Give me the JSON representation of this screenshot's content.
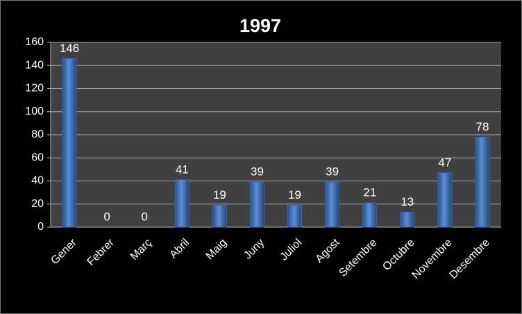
{
  "chart_data": {
    "type": "bar",
    "title": "1997",
    "categories": [
      "Gener",
      "Febrer",
      "Març",
      "Abril",
      "Maig",
      "Juny",
      "Juliol",
      "Agost",
      "Setembre",
      "Octubre",
      "Novembre",
      "Desembre"
    ],
    "values": [
      146,
      0,
      0,
      41,
      19,
      39,
      19,
      39,
      21,
      13,
      47,
      78
    ],
    "color": "#4f81bd",
    "ylim": [
      0,
      160
    ],
    "yticks": [
      0,
      20,
      40,
      60,
      80,
      100,
      120,
      140,
      160
    ],
    "grid": true
  }
}
